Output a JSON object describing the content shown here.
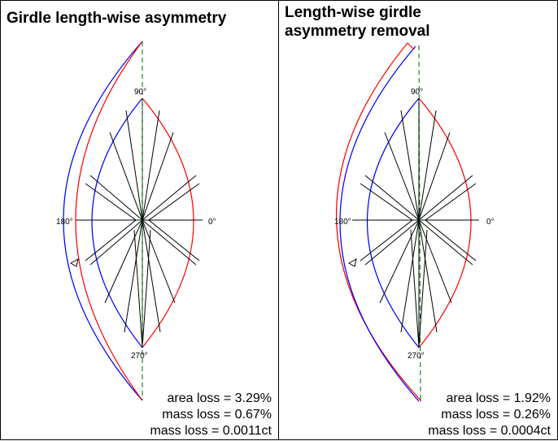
{
  "panels": [
    {
      "title": "Girdle length-wise asymmetry",
      "angle_labels": {
        "top": "90°",
        "left": "180°",
        "right": "0°",
        "bottom": "270°"
      },
      "stats": {
        "area_loss": "area loss = 3.29%",
        "mass_loss_pct": "mass loss = 0.67%",
        "mass_loss_ct": "mass loss = 0.0011ct"
      }
    },
    {
      "title": "Length-wise girdle asymmetry removal",
      "angle_labels": {
        "top": "90°",
        "left": "180°",
        "right": "0°",
        "bottom": "270°"
      },
      "stats": {
        "area_loss": "area loss = 1.92%",
        "mass_loss_pct": "mass loss = 0.26%",
        "mass_loss_ct": "mass loss = 0.0004ct"
      }
    }
  ],
  "colors": {
    "left_outline": "#0000ff",
    "right_outline": "#ff0000",
    "facets": "#000000",
    "axis": "#006400"
  }
}
